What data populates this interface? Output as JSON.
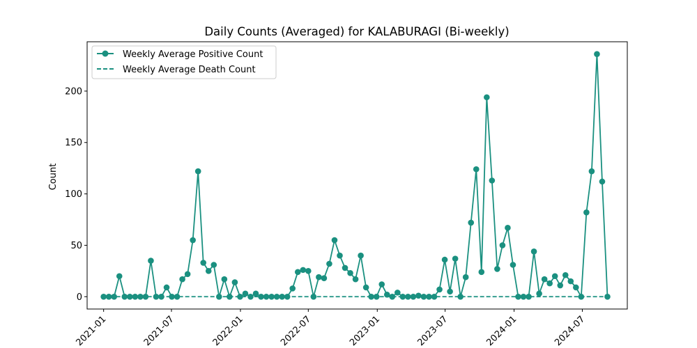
{
  "chart_data": {
    "type": "line",
    "title": "Daily Counts (Averaged) for KALABURAGI (Bi-weekly)",
    "xlabel": "",
    "ylabel": "Count",
    "x_axis_type": "date",
    "xlim": [
      "2020-11-18",
      "2024-10-29"
    ],
    "ylim": [
      -12,
      248
    ],
    "yticks": [
      0,
      50,
      100,
      150,
      200
    ],
    "xticks": [
      "2021-01",
      "2021-07",
      "2022-01",
      "2022-07",
      "2023-01",
      "2023-07",
      "2024-01",
      "2024-07"
    ],
    "grid": false,
    "legend_position": "top-left",
    "colors": {
      "series": "#1a9080",
      "axes": "#000000",
      "background": "#ffffff"
    },
    "x": [
      "2021-01-01",
      "2021-01-15",
      "2021-01-29",
      "2021-02-12",
      "2021-02-26",
      "2021-03-12",
      "2021-03-26",
      "2021-04-09",
      "2021-04-23",
      "2021-05-07",
      "2021-05-21",
      "2021-06-04",
      "2021-06-18",
      "2021-07-02",
      "2021-07-16",
      "2021-07-30",
      "2021-08-13",
      "2021-08-27",
      "2021-09-10",
      "2021-09-24",
      "2021-10-08",
      "2021-10-22",
      "2021-11-05",
      "2021-11-19",
      "2021-12-03",
      "2021-12-17",
      "2021-12-31",
      "2022-01-14",
      "2022-01-28",
      "2022-02-11",
      "2022-02-25",
      "2022-03-11",
      "2022-03-25",
      "2022-04-08",
      "2022-04-22",
      "2022-05-06",
      "2022-05-20",
      "2022-06-03",
      "2022-06-17",
      "2022-07-01",
      "2022-07-15",
      "2022-07-29",
      "2022-08-12",
      "2022-08-26",
      "2022-09-09",
      "2022-09-23",
      "2022-10-07",
      "2022-10-21",
      "2022-11-04",
      "2022-11-18",
      "2022-12-02",
      "2022-12-16",
      "2022-12-30",
      "2023-01-13",
      "2023-01-27",
      "2023-02-10",
      "2023-02-24",
      "2023-03-10",
      "2023-03-24",
      "2023-04-07",
      "2023-04-21",
      "2023-05-05",
      "2023-05-19",
      "2023-06-02",
      "2023-06-16",
      "2023-06-30",
      "2023-07-14",
      "2023-07-28",
      "2023-08-11",
      "2023-08-25",
      "2023-09-08",
      "2023-09-22",
      "2023-10-06",
      "2023-10-20",
      "2023-11-03",
      "2023-11-17",
      "2023-12-01",
      "2023-12-15",
      "2023-12-29",
      "2024-01-12",
      "2024-01-26",
      "2024-02-09",
      "2024-02-23",
      "2024-03-08",
      "2024-03-22",
      "2024-04-05",
      "2024-04-19",
      "2024-05-03",
      "2024-05-17",
      "2024-05-31",
      "2024-06-14",
      "2024-06-28",
      "2024-07-12",
      "2024-07-26",
      "2024-08-09",
      "2024-08-23",
      "2024-09-06"
    ],
    "series": [
      {
        "name": "Weekly Average Positive Count",
        "style": "solid-line-with-circle-markers",
        "values": [
          0,
          0,
          0,
          20,
          0,
          0,
          0,
          0,
          0,
          35,
          0,
          0,
          9,
          0,
          0,
          17,
          22,
          55,
          122,
          33,
          25,
          31,
          0,
          17,
          0,
          14,
          0,
          3,
          0,
          3,
          0,
          0,
          0,
          0,
          0,
          0,
          8,
          24,
          26,
          25,
          0,
          19,
          18,
          32,
          55,
          40,
          28,
          23,
          17,
          40,
          9,
          0,
          0,
          12,
          2,
          0,
          4,
          0,
          0,
          0,
          1,
          0,
          0,
          0,
          7,
          36,
          5,
          37,
          0,
          19,
          72,
          124,
          24,
          194,
          113,
          27,
          50,
          67,
          31,
          0,
          0,
          0,
          44,
          3,
          17,
          13,
          20,
          11,
          21,
          15,
          9,
          0,
          82,
          122,
          236,
          112,
          0
        ]
      },
      {
        "name": "Weekly Average Death Count",
        "style": "dashed-line",
        "values": [
          0,
          0,
          0,
          0,
          0,
          0,
          0,
          0,
          0,
          0,
          0,
          0,
          0,
          0,
          0,
          0,
          0,
          0,
          0,
          0,
          0,
          0,
          0,
          0,
          0,
          0,
          0,
          0,
          0,
          0,
          0,
          0,
          0,
          0,
          0,
          0,
          0,
          0,
          0,
          0,
          0,
          0,
          0,
          0,
          0,
          0,
          0,
          0,
          0,
          0,
          0,
          0,
          0,
          0,
          0,
          0,
          0,
          0,
          0,
          0,
          0,
          0,
          0,
          0,
          0,
          0,
          0,
          0,
          0,
          0,
          0,
          0,
          0,
          0,
          0,
          0,
          0,
          0,
          0,
          0,
          0,
          0,
          0,
          0,
          0,
          0,
          0,
          0,
          0,
          0,
          0,
          0,
          0,
          0,
          0,
          0,
          0
        ]
      }
    ]
  }
}
